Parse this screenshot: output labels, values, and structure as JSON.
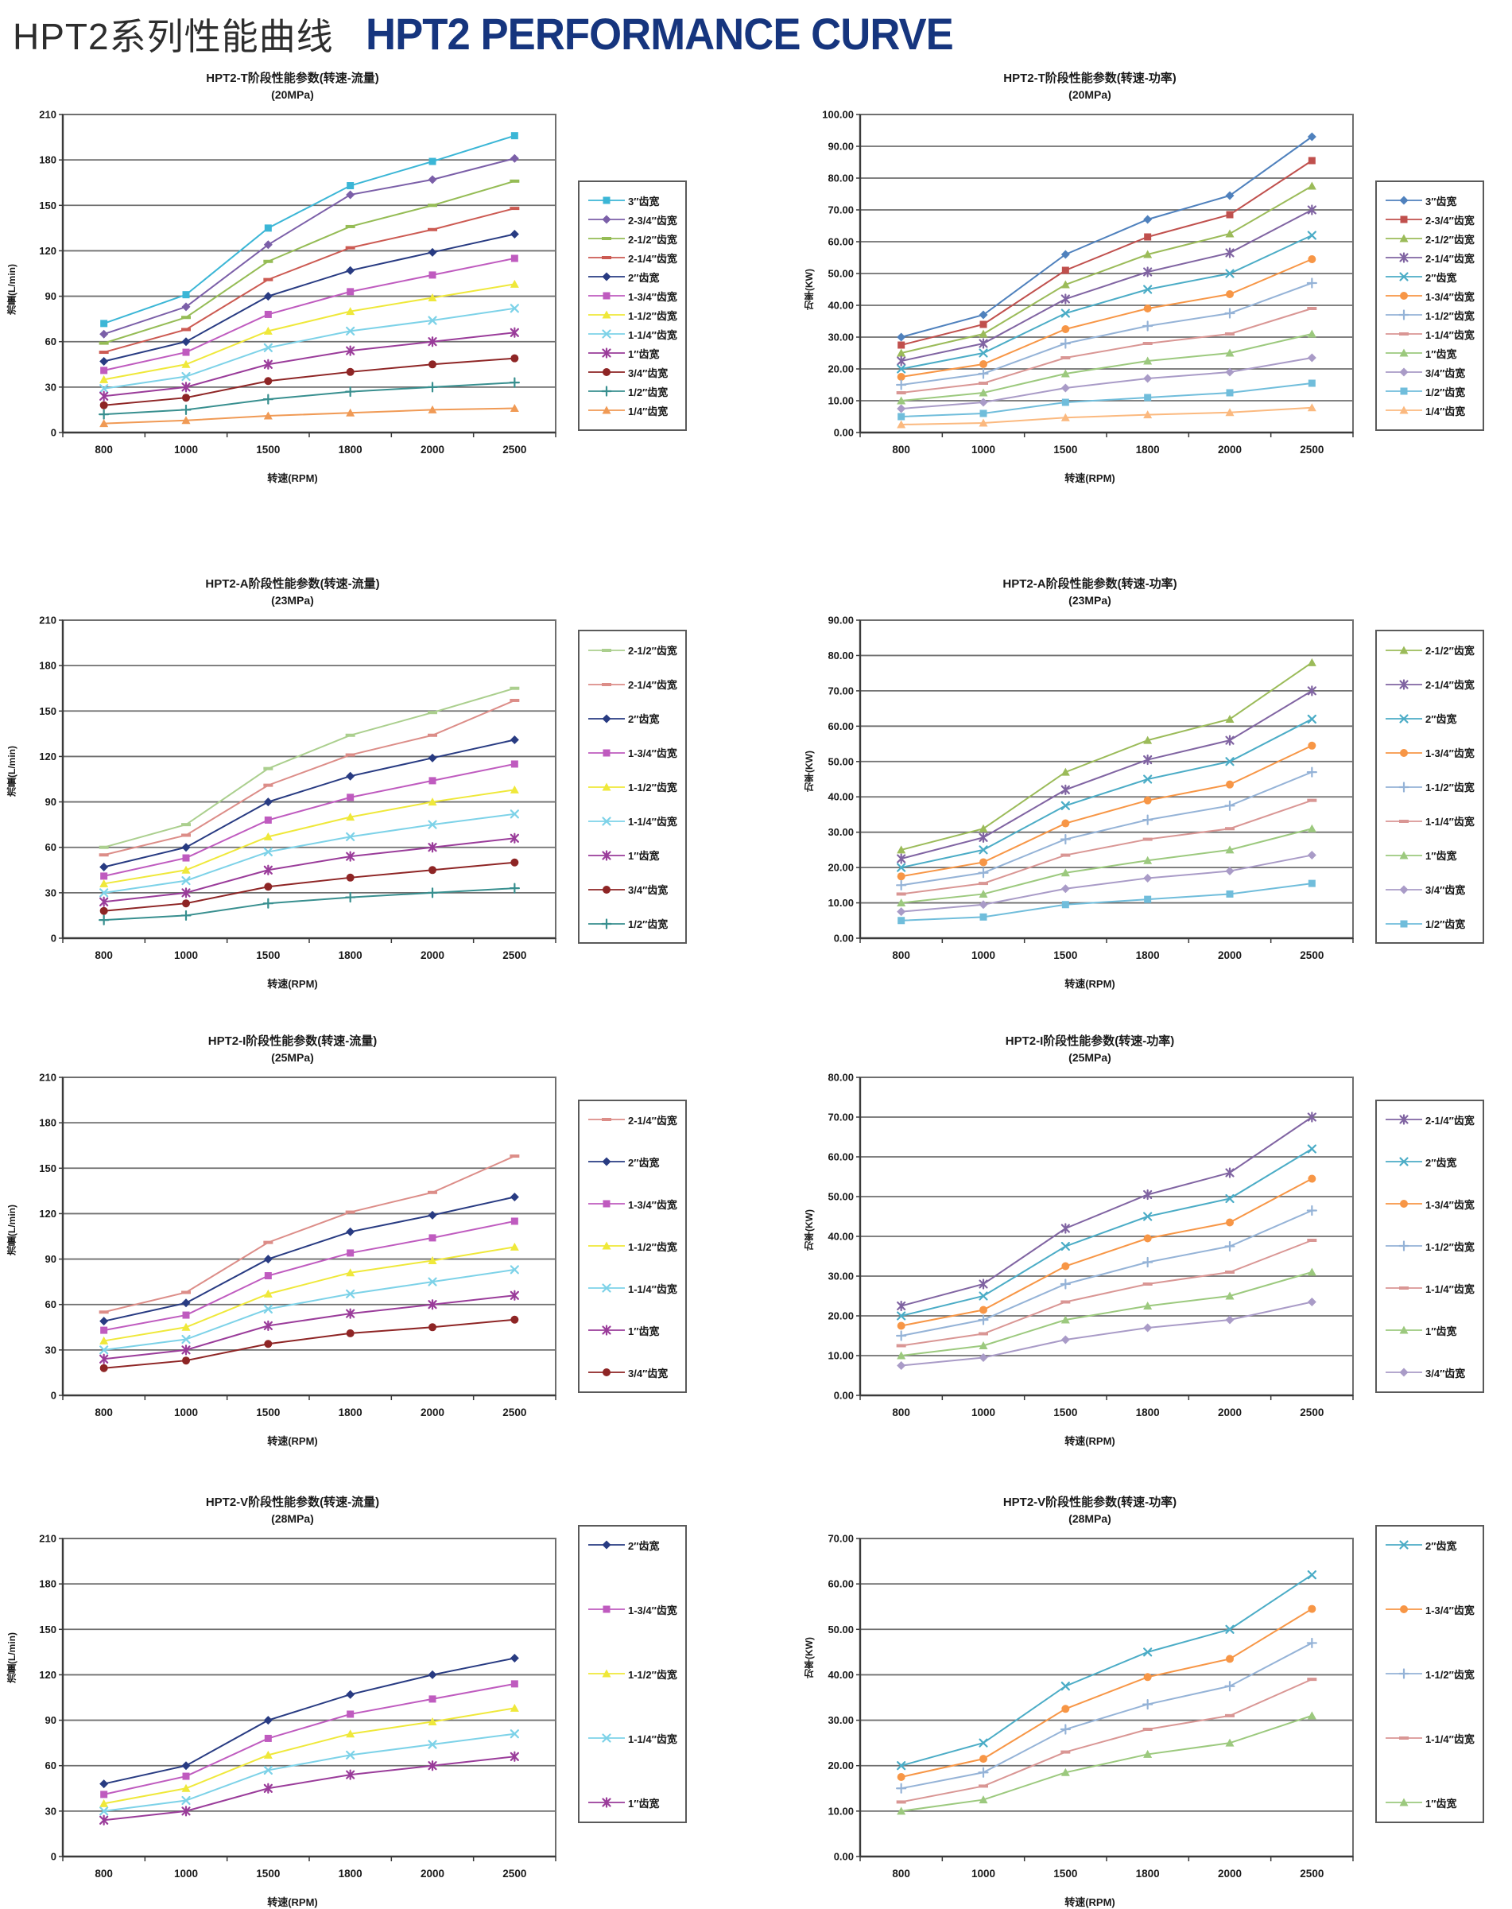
{
  "header": {
    "title_zh": "HPT2系列性能曲线",
    "title_en": "HPT2 PERFORMANCE CURVE",
    "title_en_color": "#16357E"
  },
  "chart_data": [
    {
      "type": "line",
      "title": "HPT2-T阶段性能参数(转速-流量)",
      "subtitle": "(20MPa)",
      "xlabel": "转速(RPM)",
      "ylabel": "流量(L/min)",
      "x_categories": [
        "800",
        "1000",
        "1500",
        "1800",
        "2000",
        "2500"
      ],
      "ylim": [
        0,
        210
      ],
      "ystep": 30,
      "decimals": 0,
      "grid": true,
      "legend_position": "right",
      "series": [
        {
          "name": "3″齿宽",
          "color": "#3BB6D6",
          "marker": "square",
          "values": [
            72,
            91,
            135,
            163,
            179,
            196
          ]
        },
        {
          "name": "2-3/4″齿宽",
          "color": "#7B5FA8",
          "marker": "diamond",
          "values": [
            65,
            83,
            124,
            157,
            167,
            181
          ]
        },
        {
          "name": "2-1/2″齿宽",
          "color": "#95BC55",
          "marker": "dash",
          "values": [
            59,
            76,
            113,
            136,
            150,
            166
          ]
        },
        {
          "name": "2-1/4″齿宽",
          "color": "#CC5A52",
          "marker": "dash",
          "values": [
            53,
            68,
            101,
            122,
            134,
            148
          ]
        },
        {
          "name": "2″齿宽",
          "color": "#283B82",
          "marker": "diamond",
          "values": [
            47,
            60,
            90,
            107,
            119,
            131
          ]
        },
        {
          "name": "1-3/4″齿宽",
          "color": "#BF5BBF",
          "marker": "square",
          "values": [
            41,
            53,
            78,
            93,
            104,
            115
          ]
        },
        {
          "name": "1-1/2″齿宽",
          "color": "#EFE83A",
          "marker": "triangle",
          "values": [
            35,
            45,
            67,
            80,
            89,
            98
          ]
        },
        {
          "name": "1-1/4″齿宽",
          "color": "#7DD2E8",
          "marker": "x",
          "values": [
            29,
            37,
            56,
            67,
            74,
            82
          ]
        },
        {
          "name": "1″齿宽",
          "color": "#9A3C9A",
          "marker": "star",
          "values": [
            24,
            30,
            45,
            54,
            60,
            66
          ]
        },
        {
          "name": "3/4″齿宽",
          "color": "#8E2525",
          "marker": "circle",
          "values": [
            18,
            23,
            34,
            40,
            45,
            49
          ]
        },
        {
          "name": "1/2″齿宽",
          "color": "#388F8F",
          "marker": "plus",
          "values": [
            12,
            15,
            22,
            27,
            30,
            33
          ]
        },
        {
          "name": "1/4″齿宽",
          "color": "#F09A55",
          "marker": "triangle",
          "values": [
            6,
            8,
            11,
            13,
            15,
            16
          ]
        }
      ]
    },
    {
      "type": "line",
      "title": "HPT2-T阶段性能参数(转速-功率)",
      "subtitle": "(20MPa)",
      "xlabel": "转速(RPM)",
      "ylabel": "功率(KW)",
      "x_categories": [
        "800",
        "1000",
        "1500",
        "1800",
        "2000",
        "2500"
      ],
      "ylim": [
        0,
        100
      ],
      "ystep": 10,
      "decimals": 2,
      "grid": true,
      "legend_position": "right",
      "series": [
        {
          "name": "3″齿宽",
          "color": "#4F81BD",
          "marker": "diamond",
          "values": [
            30,
            37,
            56,
            67,
            74.5,
            93
          ]
        },
        {
          "name": "2-3/4″齿宽",
          "color": "#C0504D",
          "marker": "square",
          "values": [
            27.5,
            34,
            51,
            61.5,
            68.5,
            85.5
          ]
        },
        {
          "name": "2-1/2″齿宽",
          "color": "#9BBB59",
          "marker": "triangle",
          "values": [
            25,
            31,
            46.5,
            56,
            62.5,
            77.5
          ]
        },
        {
          "name": "2-1/4″齿宽",
          "color": "#8064A2",
          "marker": "star",
          "values": [
            22.5,
            28,
            42,
            50.5,
            56.5,
            70
          ]
        },
        {
          "name": "2″齿宽",
          "color": "#4BACC6",
          "marker": "x",
          "values": [
            20,
            25,
            37.5,
            45,
            50,
            62
          ]
        },
        {
          "name": "1-3/4″齿宽",
          "color": "#F79646",
          "marker": "circle",
          "values": [
            17.5,
            21.5,
            32.5,
            39,
            43.5,
            54.5
          ]
        },
        {
          "name": "1-1/2″齿宽",
          "color": "#95B3D7",
          "marker": "plus",
          "values": [
            15,
            18.5,
            28,
            33.5,
            37.5,
            47
          ]
        },
        {
          "name": "1-1/4″齿宽",
          "color": "#D99694",
          "marker": "dash",
          "values": [
            12.5,
            15.5,
            23.5,
            28,
            31,
            39
          ]
        },
        {
          "name": "1″齿宽",
          "color": "#9CC97E",
          "marker": "triangle",
          "values": [
            10,
            12.5,
            18.5,
            22.5,
            25,
            31
          ]
        },
        {
          "name": "3/4″齿宽",
          "color": "#A99BC7",
          "marker": "diamond",
          "values": [
            7.5,
            9.5,
            14,
            17,
            19,
            23.5
          ]
        },
        {
          "name": "1/2″齿宽",
          "color": "#70BDDB",
          "marker": "square",
          "values": [
            5,
            6,
            9.5,
            11,
            12.5,
            15.5
          ]
        },
        {
          "name": "1/4″齿宽",
          "color": "#FBB97F",
          "marker": "triangle",
          "values": [
            2.5,
            3,
            4.7,
            5.6,
            6.3,
            7.8
          ]
        }
      ]
    },
    {
      "type": "line",
      "title": "HPT2-A阶段性能参数(转速-流量)",
      "subtitle": "(23MPa)",
      "xlabel": "转速(RPM)",
      "ylabel": "流量(L/min)",
      "x_categories": [
        "800",
        "1000",
        "1500",
        "1800",
        "2000",
        "2500"
      ],
      "ylim": [
        0,
        210
      ],
      "ystep": 30,
      "decimals": 0,
      "grid": true,
      "legend_position": "right",
      "series": [
        {
          "name": "2-1/2″齿宽",
          "color": "#ABCF8E",
          "marker": "dash",
          "values": [
            60,
            75,
            112,
            134,
            149,
            165
          ]
        },
        {
          "name": "2-1/4″齿宽",
          "color": "#DC8D88",
          "marker": "dash",
          "values": [
            55,
            68,
            101,
            121,
            134,
            157
          ]
        },
        {
          "name": "2″齿宽",
          "color": "#283B82",
          "marker": "diamond",
          "values": [
            47,
            60,
            90,
            107,
            119,
            131
          ]
        },
        {
          "name": "1-3/4″齿宽",
          "color": "#BF5BBF",
          "marker": "square",
          "values": [
            41,
            53,
            78,
            93,
            104,
            115
          ]
        },
        {
          "name": "1-1/2″齿宽",
          "color": "#EFE83A",
          "marker": "triangle",
          "values": [
            36,
            45,
            67,
            80,
            90,
            98
          ]
        },
        {
          "name": "1-1/4″齿宽",
          "color": "#7DD2E8",
          "marker": "x",
          "values": [
            30,
            38,
            57,
            67,
            75,
            82
          ]
        },
        {
          "name": "1″齿宽",
          "color": "#9A3C9A",
          "marker": "star",
          "values": [
            24,
            30,
            45,
            54,
            60,
            66
          ]
        },
        {
          "name": "3/4″齿宽",
          "color": "#8E2525",
          "marker": "circle",
          "values": [
            18,
            23,
            34,
            40,
            45,
            50
          ]
        },
        {
          "name": "1/2″齿宽",
          "color": "#388F8F",
          "marker": "plus",
          "values": [
            12,
            15,
            23,
            27,
            30,
            33
          ]
        }
      ]
    },
    {
      "type": "line",
      "title": "HPT2-A阶段性能参数(转速-功率)",
      "subtitle": "(23MPa)",
      "xlabel": "转速(RPM)",
      "ylabel": "功率(KW)",
      "x_categories": [
        "800",
        "1000",
        "1500",
        "1800",
        "2000",
        "2500"
      ],
      "ylim": [
        0,
        90
      ],
      "ystep": 10,
      "decimals": 2,
      "grid": true,
      "legend_position": "right",
      "series": [
        {
          "name": "2-1/2″齿宽",
          "color": "#9BBB59",
          "marker": "triangle",
          "values": [
            25,
            31,
            47,
            56,
            62,
            78
          ]
        },
        {
          "name": "2-1/4″齿宽",
          "color": "#8064A2",
          "marker": "star",
          "values": [
            22.5,
            28.5,
            42,
            50.5,
            56,
            70
          ]
        },
        {
          "name": "2″齿宽",
          "color": "#4BACC6",
          "marker": "x",
          "values": [
            20,
            25,
            37.5,
            45,
            50,
            62
          ]
        },
        {
          "name": "1-3/4″齿宽",
          "color": "#F79646",
          "marker": "circle",
          "values": [
            17.5,
            21.5,
            32.5,
            39,
            43.5,
            54.5
          ]
        },
        {
          "name": "1-1/2″齿宽",
          "color": "#95B3D7",
          "marker": "plus",
          "values": [
            15,
            18.5,
            28,
            33.5,
            37.5,
            47
          ]
        },
        {
          "name": "1-1/4″齿宽",
          "color": "#D99694",
          "marker": "dash",
          "values": [
            12.5,
            15.5,
            23.5,
            28,
            31,
            39
          ]
        },
        {
          "name": "1″齿宽",
          "color": "#9CC97E",
          "marker": "triangle",
          "values": [
            10,
            12.5,
            18.5,
            22,
            25,
            31
          ]
        },
        {
          "name": "3/4″齿宽",
          "color": "#A99BC7",
          "marker": "diamond",
          "values": [
            7.5,
            9.5,
            14,
            17,
            19,
            23.5
          ]
        },
        {
          "name": "1/2″齿宽",
          "color": "#70BDDB",
          "marker": "square",
          "values": [
            5,
            6,
            9.5,
            11,
            12.5,
            15.5
          ]
        }
      ]
    },
    {
      "type": "line",
      "title": "HPT2-I阶段性能参数(转速-流量)",
      "subtitle": "(25MPa)",
      "xlabel": "转速(RPM)",
      "ylabel": "流量(L/min)",
      "x_categories": [
        "800",
        "1000",
        "1500",
        "1800",
        "2000",
        "2500"
      ],
      "ylim": [
        0,
        210
      ],
      "ystep": 30,
      "decimals": 0,
      "grid": true,
      "legend_position": "right",
      "series": [
        {
          "name": "2-1/4″齿宽",
          "color": "#DC8D88",
          "marker": "dash",
          "values": [
            55,
            68,
            101,
            121,
            134,
            158
          ]
        },
        {
          "name": "2″齿宽",
          "color": "#283B82",
          "marker": "diamond",
          "values": [
            49,
            61,
            90,
            108,
            119,
            131
          ]
        },
        {
          "name": "1-3/4″齿宽",
          "color": "#BF5BBF",
          "marker": "square",
          "values": [
            43,
            53,
            79,
            94,
            104,
            115
          ]
        },
        {
          "name": "1-1/2″齿宽",
          "color": "#EFE83A",
          "marker": "triangle",
          "values": [
            36,
            45,
            67,
            81,
            89,
            98
          ]
        },
        {
          "name": "1-1/4″齿宽",
          "color": "#7DD2E8",
          "marker": "x",
          "values": [
            30,
            37,
            57,
            67,
            75,
            83
          ]
        },
        {
          "name": "1″齿宽",
          "color": "#9A3C9A",
          "marker": "star",
          "values": [
            24,
            30,
            46,
            54,
            60,
            66
          ]
        },
        {
          "name": "3/4″齿宽",
          "color": "#8E2525",
          "marker": "circle",
          "values": [
            18,
            23,
            34,
            41,
            45,
            50
          ]
        }
      ]
    },
    {
      "type": "line",
      "title": "HPT2-I阶段性能参数(转速-功率)",
      "subtitle": "(25MPa)",
      "xlabel": "转速(RPM)",
      "ylabel": "功率(KW)",
      "x_categories": [
        "800",
        "1000",
        "1500",
        "1800",
        "2000",
        "2500"
      ],
      "ylim": [
        0,
        80
      ],
      "ystep": 10,
      "decimals": 2,
      "grid": true,
      "legend_position": "right",
      "series": [
        {
          "name": "2-1/4″齿宽",
          "color": "#8064A2",
          "marker": "star",
          "values": [
            22.5,
            28,
            42,
            50.5,
            56,
            70
          ]
        },
        {
          "name": "2″齿宽",
          "color": "#4BACC6",
          "marker": "x",
          "values": [
            20,
            25,
            37.5,
            45,
            49.5,
            62
          ]
        },
        {
          "name": "1-3/4″齿宽",
          "color": "#F79646",
          "marker": "circle",
          "values": [
            17.5,
            21.5,
            32.5,
            39.5,
            43.5,
            54.5
          ]
        },
        {
          "name": "1-1/2″齿宽",
          "color": "#95B3D7",
          "marker": "plus",
          "values": [
            15,
            19,
            28,
            33.5,
            37.5,
            46.5
          ]
        },
        {
          "name": "1-1/4″齿宽",
          "color": "#D99694",
          "marker": "dash",
          "values": [
            12.5,
            15.5,
            23.5,
            28,
            31,
            39
          ]
        },
        {
          "name": "1″齿宽",
          "color": "#9CC97E",
          "marker": "triangle",
          "values": [
            10,
            12.5,
            19,
            22.5,
            25,
            31
          ]
        },
        {
          "name": "3/4″齿宽",
          "color": "#A99BC7",
          "marker": "diamond",
          "values": [
            7.5,
            9.5,
            14,
            17,
            19,
            23.5
          ]
        }
      ]
    },
    {
      "type": "line",
      "title": "HPT2-V阶段性能参数(转速-流量)",
      "subtitle": "(28MPa)",
      "xlabel": "转速(RPM)",
      "ylabel": "流量(L/min)",
      "x_categories": [
        "800",
        "1000",
        "1500",
        "1800",
        "2000",
        "2500"
      ],
      "ylim": [
        0,
        210
      ],
      "ystep": 30,
      "decimals": 0,
      "grid": true,
      "legend_position": "right",
      "series": [
        {
          "name": "2″齿宽",
          "color": "#283B82",
          "marker": "diamond",
          "values": [
            48,
            60,
            90,
            107,
            120,
            131
          ]
        },
        {
          "name": "1-3/4″齿宽",
          "color": "#BF5BBF",
          "marker": "square",
          "values": [
            41,
            53,
            78,
            94,
            104,
            114
          ]
        },
        {
          "name": "1-1/2″齿宽",
          "color": "#EFE83A",
          "marker": "triangle",
          "values": [
            35,
            45,
            67,
            81,
            89,
            98
          ]
        },
        {
          "name": "1-1/4″齿宽",
          "color": "#7DD2E8",
          "marker": "x",
          "values": [
            30,
            37,
            57,
            67,
            74,
            81
          ]
        },
        {
          "name": "1″齿宽",
          "color": "#9A3C9A",
          "marker": "star",
          "values": [
            24,
            30,
            45,
            54,
            60,
            66
          ]
        }
      ]
    },
    {
      "type": "line",
      "title": "HPT2-V阶段性能参数(转速-功率)",
      "subtitle": "(28MPa)",
      "xlabel": "转速(RPM)",
      "ylabel": "功率(KW)",
      "x_categories": [
        "800",
        "1000",
        "1500",
        "1800",
        "2000",
        "2500"
      ],
      "ylim": [
        0,
        70
      ],
      "ystep": 10,
      "decimals": 2,
      "grid": true,
      "legend_position": "right",
      "series": [
        {
          "name": "2″齿宽",
          "color": "#4BACC6",
          "marker": "x",
          "values": [
            20,
            25,
            37.5,
            45,
            50,
            62
          ]
        },
        {
          "name": "1-3/4″齿宽",
          "color": "#F79646",
          "marker": "circle",
          "values": [
            17.5,
            21.5,
            32.5,
            39.5,
            43.5,
            54.5
          ]
        },
        {
          "name": "1-1/2″齿宽",
          "color": "#95B3D7",
          "marker": "plus",
          "values": [
            15,
            18.5,
            28,
            33.5,
            37.5,
            47
          ]
        },
        {
          "name": "1-1/4″齿宽",
          "color": "#D99694",
          "marker": "dash",
          "values": [
            12,
            15.5,
            23,
            28,
            31,
            39
          ]
        },
        {
          "name": "1″齿宽",
          "color": "#9CC97E",
          "marker": "triangle",
          "values": [
            10,
            12.5,
            18.5,
            22.5,
            25,
            31
          ]
        }
      ]
    }
  ]
}
